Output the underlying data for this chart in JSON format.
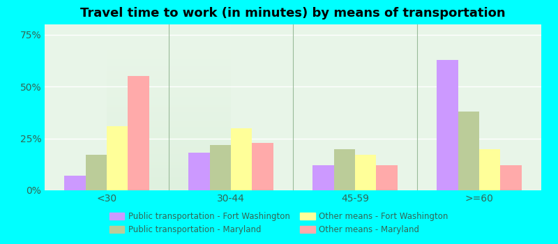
{
  "title": "Travel time to work (in minutes) by means of transportation",
  "categories": [
    "<30",
    "30-44",
    "45-59",
    ">=60"
  ],
  "series": {
    "pub_fort_washington": [
      7,
      18,
      12,
      63
    ],
    "pub_maryland": [
      17,
      22,
      20,
      38
    ],
    "other_fort_washington": [
      31,
      30,
      17,
      20
    ],
    "other_maryland": [
      55,
      23,
      12,
      12
    ]
  },
  "colors": {
    "pub_fort_washington": "#cc99ff",
    "pub_maryland": "#bbcc99",
    "other_fort_washington": "#ffff99",
    "other_maryland": "#ffaaaa"
  },
  "legend_labels": {
    "pub_fort_washington": "Public transportation - Fort Washington",
    "pub_maryland": "Public transportation - Maryland",
    "other_fort_washington": "Other means - Fort Washington",
    "other_maryland": "Other means - Maryland"
  },
  "legend_order": [
    "pub_fort_washington",
    "pub_maryland",
    "other_fort_washington",
    "other_maryland"
  ],
  "ylim": [
    0,
    80
  ],
  "yticks": [
    0,
    25,
    50,
    75
  ],
  "ytick_labels": [
    "0%",
    "25%",
    "50%",
    "75%"
  ],
  "plot_bg": "#e8f5e8",
  "outer_bg": "#00ffff",
  "title_fontsize": 13,
  "bar_width": 0.17,
  "tick_color": "#336655",
  "label_color": "#336655"
}
